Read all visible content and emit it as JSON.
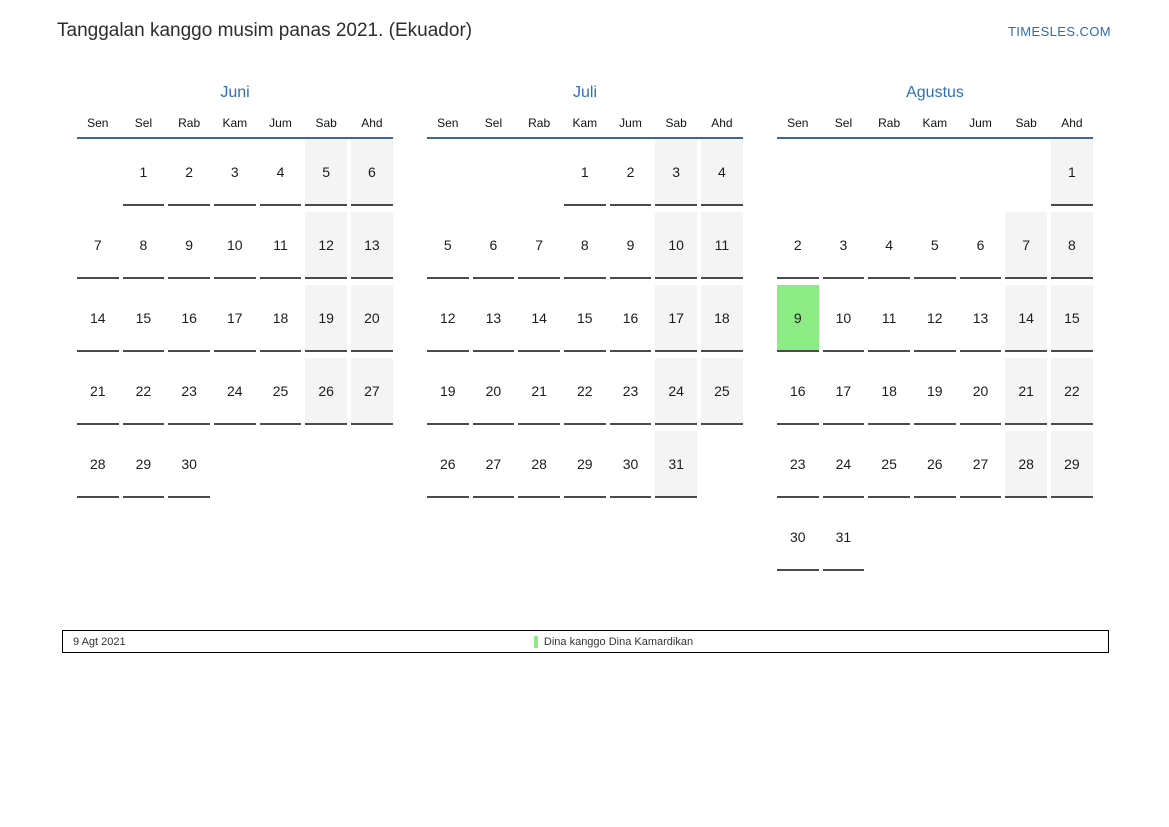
{
  "page": {
    "title": "Tanggalan kanggo musim panas 2021. (Ekuador)",
    "site_link": "TIMESLES.COM"
  },
  "day_headers": [
    "Sen",
    "Sel",
    "Rab",
    "Kam",
    "Jum",
    "Sab",
    "Ahd"
  ],
  "months": [
    {
      "name": "Juni",
      "highlight_day": null,
      "weeks": [
        [
          "",
          "1",
          "2",
          "3",
          "4",
          "5",
          "6"
        ],
        [
          "7",
          "8",
          "9",
          "10",
          "11",
          "12",
          "13"
        ],
        [
          "14",
          "15",
          "16",
          "17",
          "18",
          "19",
          "20"
        ],
        [
          "21",
          "22",
          "23",
          "24",
          "25",
          "26",
          "27"
        ],
        [
          "28",
          "29",
          "30",
          "",
          "",
          "",
          ""
        ]
      ]
    },
    {
      "name": "Juli",
      "highlight_day": null,
      "weeks": [
        [
          "",
          "",
          "",
          "1",
          "2",
          "3",
          "4"
        ],
        [
          "5",
          "6",
          "7",
          "8",
          "9",
          "10",
          "11"
        ],
        [
          "12",
          "13",
          "14",
          "15",
          "16",
          "17",
          "18"
        ],
        [
          "19",
          "20",
          "21",
          "22",
          "23",
          "24",
          "25"
        ],
        [
          "26",
          "27",
          "28",
          "29",
          "30",
          "31",
          ""
        ]
      ]
    },
    {
      "name": "Agustus",
      "highlight_day": "9",
      "weeks": [
        [
          "",
          "",
          "",
          "",
          "",
          "",
          "1"
        ],
        [
          "2",
          "3",
          "4",
          "5",
          "6",
          "7",
          "8"
        ],
        [
          "9",
          "10",
          "11",
          "12",
          "13",
          "14",
          "15"
        ],
        [
          "16",
          "17",
          "18",
          "19",
          "20",
          "21",
          "22"
        ],
        [
          "23",
          "24",
          "25",
          "26",
          "27",
          "28",
          "29"
        ],
        [
          "30",
          "31",
          "",
          "",
          "",
          "",
          ""
        ]
      ]
    }
  ],
  "footer": {
    "date_label": "9 Agt 2021",
    "legend_label": "Dina kanggo Dina Kamardikan"
  },
  "colors": {
    "accent_blue": "#3170b4",
    "link_blue": "#2a6db5",
    "header_line": "#3e6896",
    "underline": "#4a4a4a",
    "weekend_bg": "#f4f4f4",
    "highlight_green": "#8ceb85"
  }
}
